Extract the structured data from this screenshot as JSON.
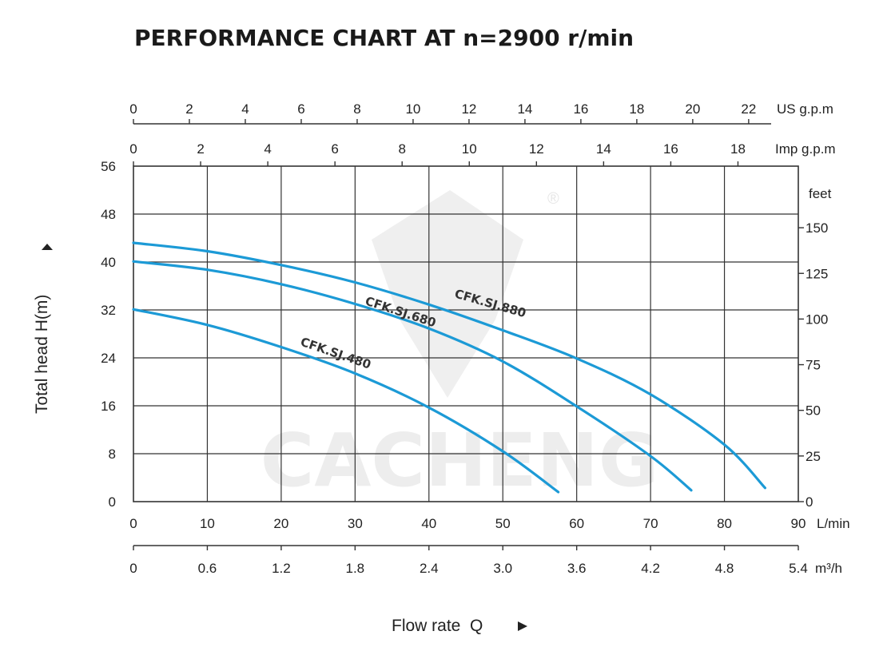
{
  "title": "PERFORMANCE CHART AT n=2900 r/min",
  "watermark": {
    "text": "CACHENG",
    "registered": "®"
  },
  "chart_data": {
    "type": "line",
    "title": "PERFORMANCE CHART AT n=2900 r/min",
    "xlabel": "Flow rate  Q",
    "ylabel": "Total  head H(m)",
    "x_unit": "L/min",
    "y_unit": "m",
    "xlim": [
      0,
      90
    ],
    "ylim": [
      0,
      56
    ],
    "grid": true,
    "x_ticks": [
      "0",
      "10",
      "20",
      "30",
      "40",
      "50",
      "60",
      "70",
      "80",
      "90"
    ],
    "y_ticks": [
      "0",
      "8",
      "16",
      "24",
      "32",
      "40",
      "48",
      "56"
    ],
    "secondary_axes": {
      "us_gpm": {
        "unit": "US g.p.m",
        "ticks": [
          "0",
          "2",
          "4",
          "6",
          "8",
          "10",
          "12",
          "14",
          "16",
          "18",
          "20",
          "22"
        ]
      },
      "imp_gpm": {
        "unit": "Imp g.p.m",
        "ticks": [
          "0",
          "2",
          "4",
          "6",
          "8",
          "10",
          "12",
          "14",
          "16",
          "18"
        ]
      },
      "m3h": {
        "unit": "m³/h",
        "ticks": [
          "0",
          "0.6",
          "1.2",
          "1.8",
          "2.4",
          "3.0",
          "3.6",
          "4.2",
          "4.8",
          "5.4"
        ]
      },
      "feet": {
        "unit": "feet",
        "ticks": [
          "0",
          "25",
          "50",
          "75",
          "100",
          "125",
          "150"
        ]
      }
    },
    "series": [
      {
        "name": "CFK.SJ.480",
        "color": "#1c9ad6",
        "x": [
          0,
          10,
          20,
          30,
          40,
          50,
          57.5
        ],
        "y": [
          32.1,
          29.5,
          25.8,
          21.4,
          15.7,
          8.4,
          1.6
        ]
      },
      {
        "name": "CFK.SJ.680",
        "color": "#1c9ad6",
        "x": [
          0,
          10,
          20,
          30,
          40,
          50,
          60,
          70,
          75.5
        ],
        "y": [
          40.1,
          38.7,
          36.3,
          33.0,
          28.9,
          23.4,
          15.9,
          7.6,
          1.9
        ]
      },
      {
        "name": "CFK.SJ.880",
        "color": "#1c9ad6",
        "x": [
          0,
          10,
          20,
          30,
          40,
          50,
          60,
          70,
          80,
          85.5
        ],
        "y": [
          43.2,
          41.8,
          39.5,
          36.6,
          32.9,
          28.6,
          23.9,
          17.9,
          9.5,
          2.3
        ]
      }
    ]
  }
}
